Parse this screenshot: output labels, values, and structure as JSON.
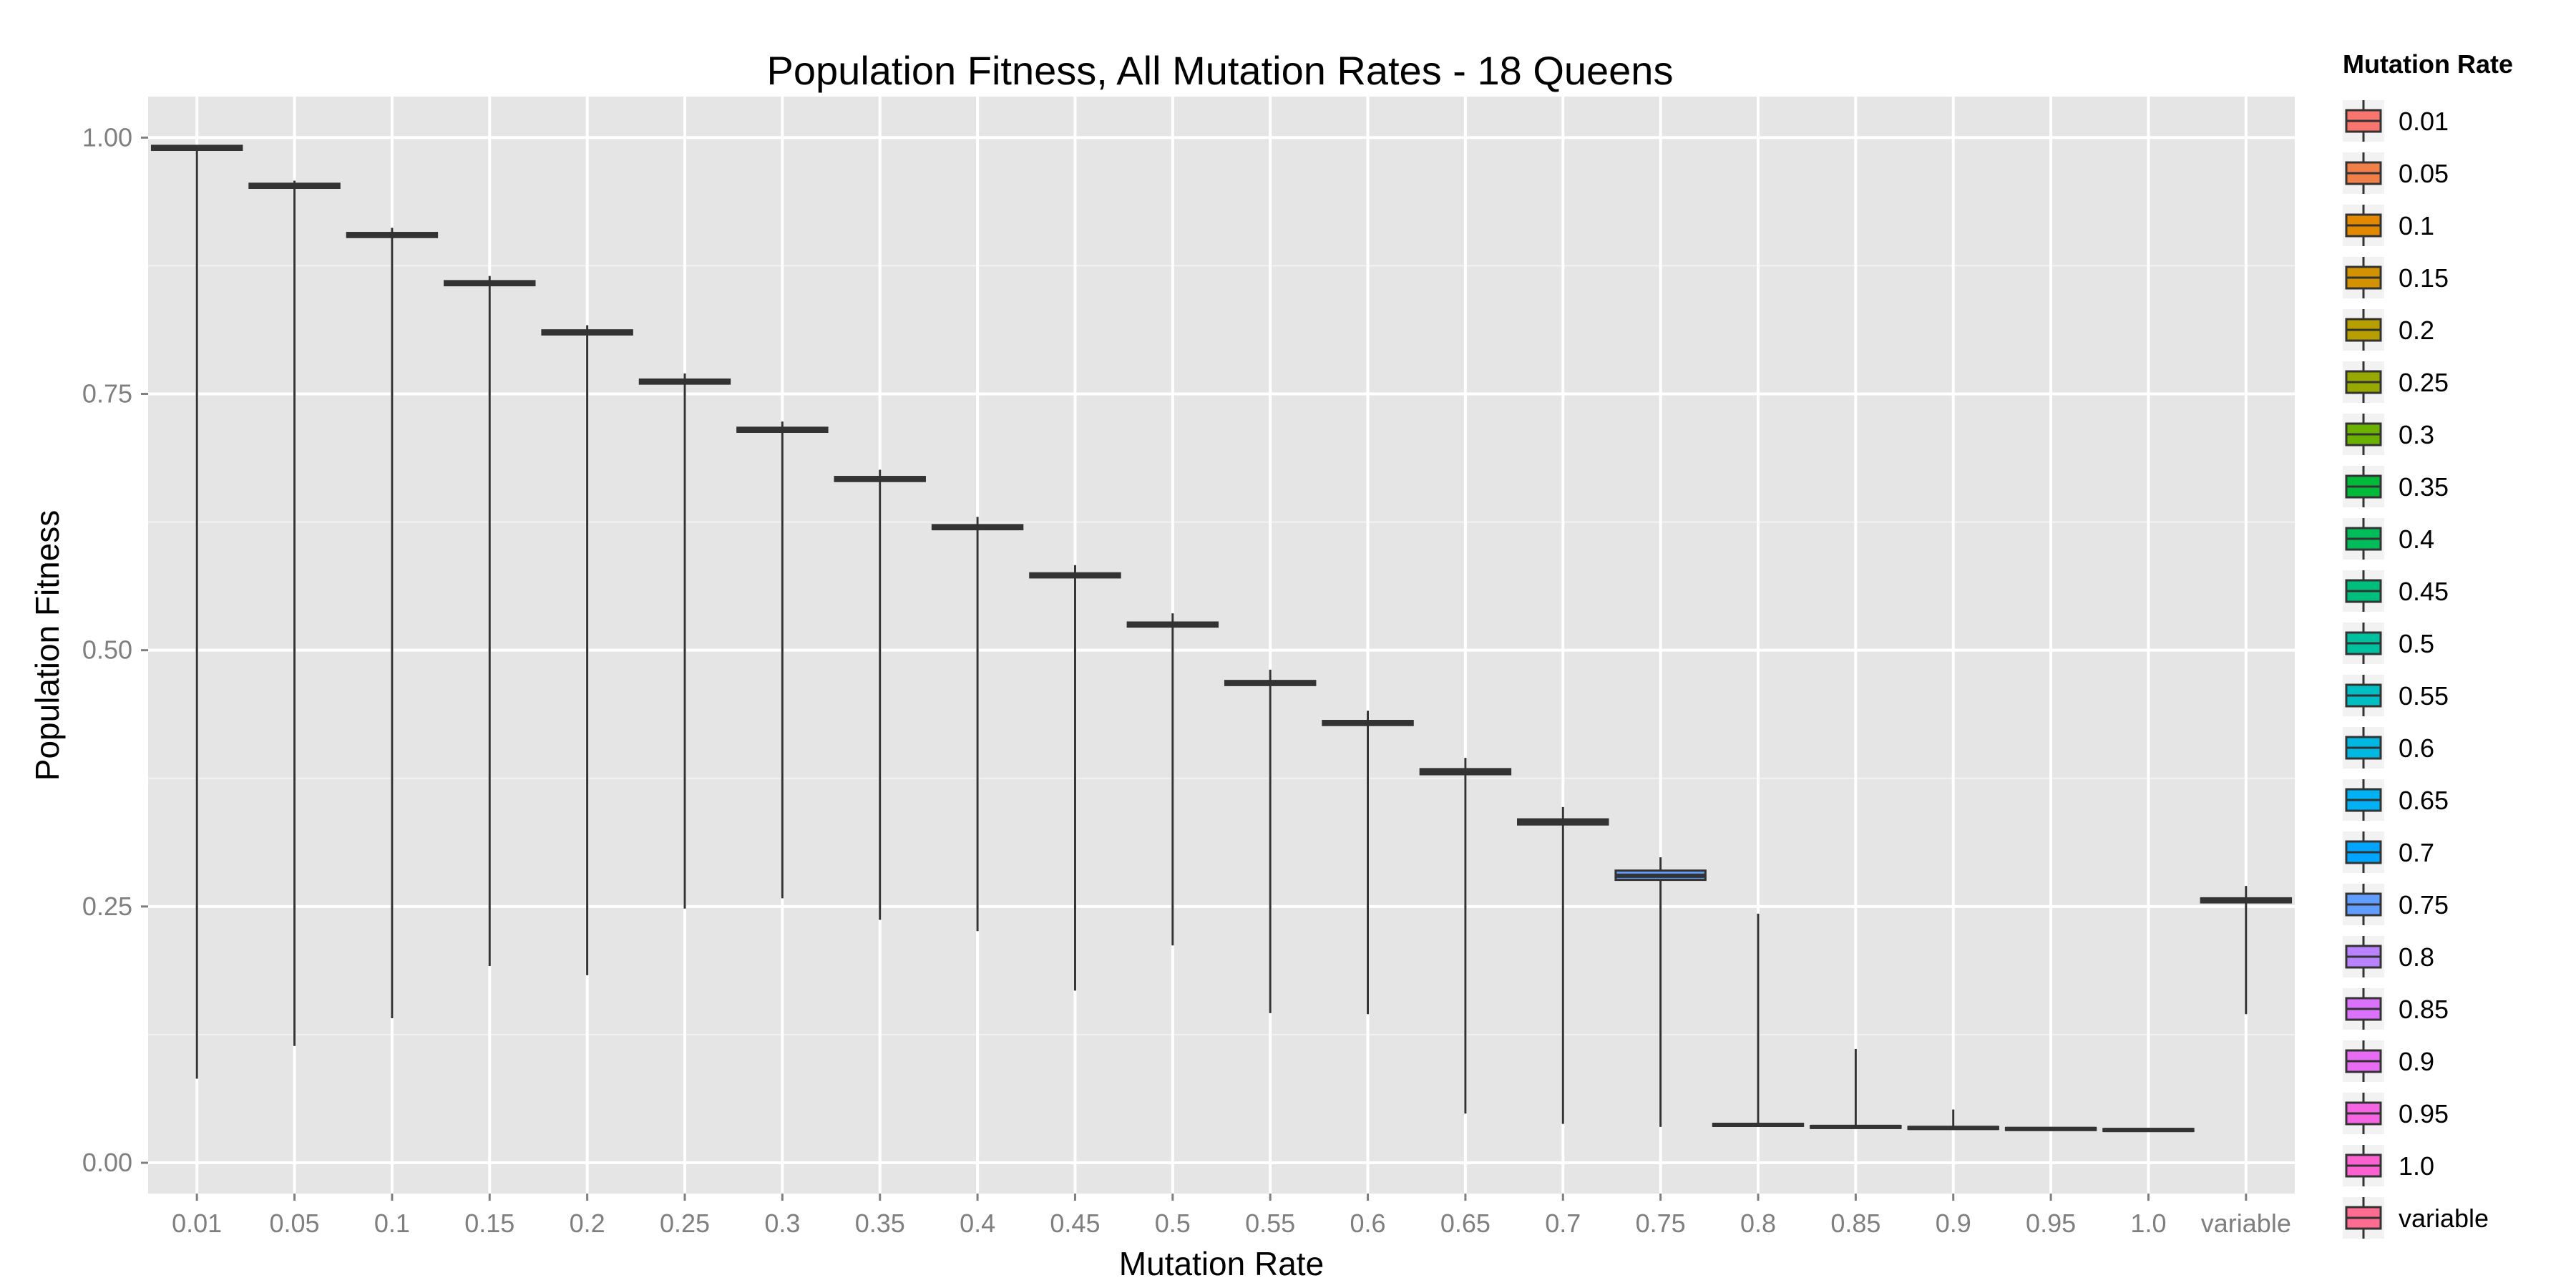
{
  "chart_data": {
    "type": "boxplot",
    "title": "Population Fitness, All Mutation Rates - 18 Queens",
    "xlabel": "Mutation Rate",
    "ylabel": "Population Fitness",
    "ylim": [
      -0.03,
      1.04
    ],
    "yticks": [
      0.0,
      0.25,
      0.5,
      0.75,
      1.0
    ],
    "ytick_labels": [
      "0.00",
      "0.25",
      "0.50",
      "0.75",
      "1.00"
    ],
    "grid": true,
    "legend": {
      "title": "Mutation Rate",
      "placement": "right"
    },
    "categories": [
      "0.01",
      "0.05",
      "0.1",
      "0.15",
      "0.2",
      "0.25",
      "0.3",
      "0.35",
      "0.4",
      "0.45",
      "0.5",
      "0.55",
      "0.6",
      "0.65",
      "0.7",
      "0.75",
      "0.8",
      "0.85",
      "0.9",
      "0.95",
      "1.0",
      "variable"
    ],
    "colors": [
      "#F8766D",
      "#F07F49",
      "#E38900",
      "#D39200",
      "#B79F00",
      "#97A900",
      "#6BB100",
      "#00BA38",
      "#00BC59",
      "#00BF7D",
      "#00C19F",
      "#00BFC4",
      "#00B9E3",
      "#00B2F3",
      "#00A5FF",
      "#619CFF",
      "#B983FF",
      "#DB72FB",
      "#E76BF3",
      "#F564E3",
      "#FD61D1",
      "#FF6C91"
    ],
    "series": [
      {
        "category": "0.01",
        "min": 0.082,
        "q1": 0.988,
        "median": 0.99,
        "q3": 0.992,
        "max": 0.992
      },
      {
        "category": "0.05",
        "min": 0.114,
        "q1": 0.951,
        "median": 0.953,
        "q3": 0.955,
        "max": 0.958
      },
      {
        "category": "0.1",
        "min": 0.141,
        "q1": 0.903,
        "median": 0.905,
        "q3": 0.907,
        "max": 0.912
      },
      {
        "category": "0.15",
        "min": 0.192,
        "q1": 0.856,
        "median": 0.858,
        "q3": 0.86,
        "max": 0.865
      },
      {
        "category": "0.2",
        "min": 0.183,
        "q1": 0.808,
        "median": 0.81,
        "q3": 0.812,
        "max": 0.817
      },
      {
        "category": "0.25",
        "min": 0.248,
        "q1": 0.76,
        "median": 0.762,
        "q3": 0.764,
        "max": 0.77
      },
      {
        "category": "0.3",
        "min": 0.258,
        "q1": 0.713,
        "median": 0.715,
        "q3": 0.717,
        "max": 0.723
      },
      {
        "category": "0.35",
        "min": 0.237,
        "q1": 0.665,
        "median": 0.667,
        "q3": 0.669,
        "max": 0.676
      },
      {
        "category": "0.4",
        "min": 0.226,
        "q1": 0.618,
        "median": 0.62,
        "q3": 0.622,
        "max": 0.63
      },
      {
        "category": "0.45",
        "min": 0.168,
        "q1": 0.571,
        "median": 0.573,
        "q3": 0.575,
        "max": 0.583
      },
      {
        "category": "0.5",
        "min": 0.212,
        "q1": 0.523,
        "median": 0.525,
        "q3": 0.527,
        "max": 0.536
      },
      {
        "category": "0.55",
        "min": 0.146,
        "q1": 0.466,
        "median": 0.468,
        "q3": 0.47,
        "max": 0.481
      },
      {
        "category": "0.6",
        "min": 0.145,
        "q1": 0.427,
        "median": 0.429,
        "q3": 0.431,
        "max": 0.441
      },
      {
        "category": "0.65",
        "min": 0.048,
        "q1": 0.379,
        "median": 0.381,
        "q3": 0.384,
        "max": 0.395
      },
      {
        "category": "0.7",
        "min": 0.038,
        "q1": 0.33,
        "median": 0.333,
        "q3": 0.335,
        "max": 0.347
      },
      {
        "category": "0.75",
        "min": 0.035,
        "q1": 0.276,
        "median": 0.28,
        "q3": 0.285,
        "max": 0.298
      },
      {
        "category": "0.8",
        "min": 0.036,
        "q1": 0.036,
        "median": 0.037,
        "q3": 0.038,
        "max": 0.243
      },
      {
        "category": "0.85",
        "min": 0.034,
        "q1": 0.034,
        "median": 0.035,
        "q3": 0.036,
        "max": 0.111
      },
      {
        "category": "0.9",
        "min": 0.033,
        "q1": 0.033,
        "median": 0.034,
        "q3": 0.035,
        "max": 0.052
      },
      {
        "category": "0.95",
        "min": 0.032,
        "q1": 0.032,
        "median": 0.033,
        "q3": 0.034,
        "max": 0.035
      },
      {
        "category": "1.0",
        "min": 0.031,
        "q1": 0.031,
        "median": 0.032,
        "q3": 0.033,
        "max": 0.034
      },
      {
        "category": "variable",
        "min": 0.145,
        "q1": 0.254,
        "median": 0.256,
        "q3": 0.258,
        "max": 0.27
      }
    ]
  }
}
